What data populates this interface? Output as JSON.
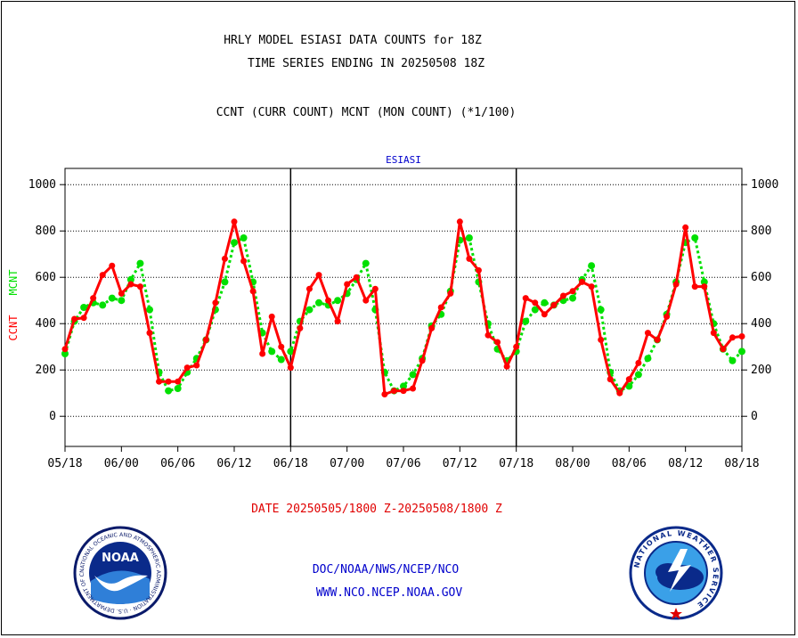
{
  "title_line1": "HRLY MODEL ESIASI DATA COUNTS for 18Z",
  "title_line2": "TIME SERIES ENDING IN 20250508 18Z",
  "subtitle": "CCNT (CURR COUNT) MCNT (MON COUNT) (*1/100)",
  "date_range": "DATE 20250505/1800 Z-20250508/1800 Z",
  "footer_org": "DOC/NOAA/NWS/NCEP/NCO",
  "footer_url": "WWW.NCO.NCEP.NOAA.GOV",
  "logos": {
    "noaa_text": "NOAA",
    "noaa_ring": "NATIONAL OCEANIC AND ATMOSPHERIC ADMINISTRATION · U.S. DEPARTMENT OF COMMERCE ·",
    "nws_ring": "NATIONAL WEATHER SERVICE"
  },
  "colors": {
    "ccnt": "#ff0000",
    "mcnt": "#00e000",
    "axis": "#000000",
    "text_blue": "#0000cc"
  },
  "chart_data": {
    "type": "line",
    "panel_title": "ESIASI",
    "ylabel_left_1": "CCNT",
    "ylabel_left_2": "MCNT",
    "ylim": [
      -130,
      1070
    ],
    "yticks": [
      0,
      200,
      400,
      600,
      800,
      1000
    ],
    "grid": true,
    "x_range": [
      0,
      72
    ],
    "xtick_hours": [
      0,
      6,
      12,
      18,
      24,
      30,
      36,
      42,
      48,
      54,
      60,
      66,
      72
    ],
    "xtick_labels": [
      "05/18",
      "06/00",
      "06/06",
      "06/12",
      "06/18",
      "07/00",
      "07/06",
      "07/12",
      "07/18",
      "08/00",
      "08/06",
      "08/12",
      "08/18"
    ],
    "day_dividers": [
      24,
      48
    ],
    "series": [
      {
        "name": "CCNT",
        "values": [
          290,
          420,
          425,
          510,
          610,
          650,
          530,
          570,
          560,
          360,
          150,
          150,
          150,
          210,
          220,
          330,
          490,
          680,
          840,
          670,
          540,
          270,
          430,
          300,
          210,
          380,
          550,
          610,
          500,
          410,
          570,
          600,
          500,
          550,
          95,
          110,
          110,
          120,
          240,
          380,
          470,
          530,
          840,
          680,
          630,
          350,
          320,
          215,
          300,
          510,
          490,
          440,
          480,
          520,
          540,
          580,
          560,
          330,
          160,
          100,
          160,
          230,
          360,
          330,
          430,
          570,
          815,
          560,
          560,
          360,
          290,
          340,
          345
        ]
      },
      {
        "name": "MCNT",
        "values": [
          270,
          410,
          470,
          490,
          480,
          510,
          500,
          590,
          660,
          460,
          190,
          110,
          120,
          190,
          250,
          330,
          460,
          580,
          750,
          770,
          580,
          360,
          280,
          245,
          280,
          410,
          460,
          490,
          480,
          500,
          530,
          590,
          660,
          460,
          190,
          110,
          130,
          180,
          250,
          390,
          440,
          540,
          760,
          770,
          580,
          400,
          290,
          240,
          280,
          410,
          460,
          490,
          480,
          500,
          510,
          590,
          650,
          460,
          190,
          110,
          130,
          180,
          250,
          330,
          440,
          580,
          750,
          770,
          580,
          400,
          290,
          240,
          280
        ]
      }
    ]
  }
}
